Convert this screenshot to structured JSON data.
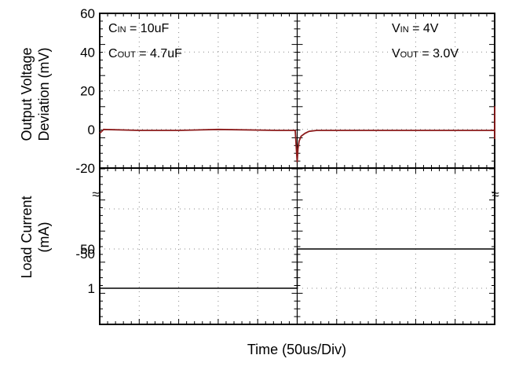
{
  "chart_data": [
    {
      "type": "line",
      "panel": "top",
      "ylabel_line1": "Output Voltage",
      "ylabel_line2": "Deviation (mV)",
      "ylim": [
        -20,
        60
      ],
      "yticks": [
        -20,
        0,
        20,
        40,
        60
      ],
      "ytick_labels": [
        "-20",
        "0",
        "20",
        "40",
        "60"
      ],
      "grid": true,
      "color": "#8b1a1a",
      "x_divisions": 10,
      "series": [
        {
          "x": [
            0,
            0.1,
            1,
            2,
            3,
            4.5,
            4.95,
            5.0,
            5.02,
            5.05,
            5.1,
            5.2,
            5.3,
            5.5,
            6,
            7,
            8,
            9,
            10.1,
            10.2,
            10.25,
            10.3,
            10.35,
            10.45,
            10.6,
            10.8,
            11.0,
            11.2,
            11.4,
            11.6,
            11.8,
            12.0,
            12.2,
            12.4,
            12.6,
            12.7,
            12.8,
            12.9,
            13.0,
            13.2,
            13.5,
            14,
            15,
            16
          ],
          "values": [
            -2,
            0,
            -0.5,
            -0.5,
            0,
            -0.5,
            -0.5,
            -17,
            -10,
            -6,
            -3.5,
            -2,
            -1,
            -0.5,
            -0.5,
            -0.5,
            -0.5,
            -0.5,
            -0.5,
            12,
            7,
            4,
            6,
            4,
            3,
            1,
            0,
            -1,
            -1.5,
            -2,
            -3,
            -4,
            -3,
            -5,
            -3,
            -2,
            -1,
            0,
            -0.5,
            0,
            -0.5,
            -0.5,
            -0.5,
            -0.5
          ]
        }
      ],
      "annotations": [
        {
          "main": "C",
          "sub": "IN",
          "rest": " = 10uF"
        },
        {
          "main": "C",
          "sub": "OUT",
          "rest": " = 4.7uF"
        },
        {
          "main": "V",
          "sub": "IN",
          "rest": " = 4V"
        },
        {
          "main": "V",
          "sub": "OUT",
          "rest": " = 3.0V"
        }
      ]
    },
    {
      "type": "line",
      "panel": "bottom",
      "ylabel_line1": "Load Current",
      "ylabel_line2": "(mA)",
      "ytick_labels": [
        "50",
        "1",
        "-50"
      ],
      "grid": true,
      "color": "#000000",
      "x_divisions": 10,
      "series": [
        {
          "x": [
            0,
            5,
            5,
            10.2,
            10.2,
            16
          ],
          "values": [
            1,
            1,
            50,
            50,
            1,
            1
          ]
        }
      ]
    }
  ],
  "axis_break_symbol": "≈",
  "xlabel": "Time (50us/Div)"
}
